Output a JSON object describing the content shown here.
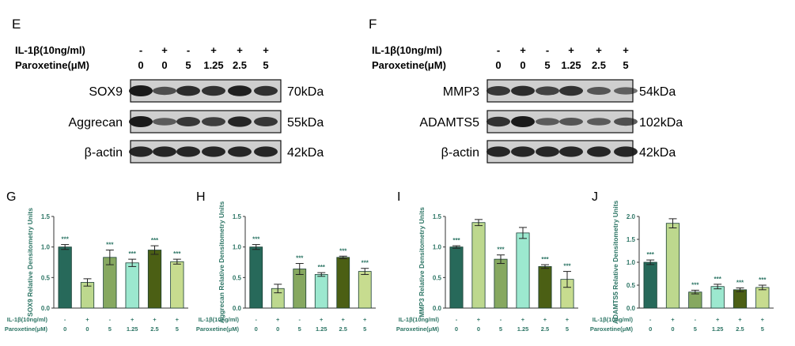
{
  "panels": {
    "blot_left": {
      "letter": "E",
      "il1b_label": "IL-1β(10ng/ml)",
      "par_label": "Paroxetine(μM)",
      "il1b_signs": [
        "-",
        "+",
        "-",
        "+",
        "+",
        "+"
      ],
      "par_values": [
        "0",
        "0",
        "5",
        "1.25",
        "2.5",
        "5"
      ],
      "rows": [
        {
          "protein": "SOX9",
          "kda": "70kDa",
          "intensity": [
            1.0,
            0.55,
            0.85,
            0.8,
            0.95,
            0.8
          ]
        },
        {
          "protein": "Aggrecan",
          "kda": "55kDa",
          "intensity": [
            1.0,
            0.45,
            0.75,
            0.7,
            0.9,
            0.75
          ]
        },
        {
          "protein": "β-actin",
          "kda": "42kDa",
          "intensity": [
            0.9,
            0.9,
            0.9,
            0.9,
            0.9,
            0.9
          ]
        }
      ]
    },
    "blot_right": {
      "letter": "F",
      "il1b_label": "IL-1β(10ng/ml)",
      "par_label": "Paroxetine(μM)",
      "il1b_signs": [
        "-",
        "+",
        "-",
        "+",
        "+",
        "+"
      ],
      "par_values": [
        "0",
        "0",
        "5",
        "1.25",
        "2.5",
        "5"
      ],
      "rows": [
        {
          "protein": "MMP3",
          "kda": "54kDa",
          "intensity": [
            0.75,
            0.85,
            0.65,
            0.8,
            0.5,
            0.4
          ]
        },
        {
          "protein": "ADAMTS5",
          "kda": "102kDa",
          "intensity": [
            0.8,
            1.0,
            0.45,
            0.5,
            0.45,
            0.55
          ]
        },
        {
          "protein": "β-actin",
          "kda": "42kDa",
          "intensity": [
            0.9,
            0.9,
            0.9,
            0.9,
            0.9,
            0.9
          ]
        }
      ]
    }
  },
  "chart_data": [
    {
      "type": "bar",
      "letter": "G",
      "ylabel": "SOX9 Relative Densitometry Units",
      "ylim": [
        0,
        1.5
      ],
      "yticks": [
        "0.0",
        "0.5",
        "1.0",
        "1.5"
      ],
      "il1b_label": "IL-1β(10ng/ml)",
      "par_label": "Paroxetine(μM)",
      "il1b_signs": [
        "-",
        "+",
        "-",
        "+",
        "+",
        "+"
      ],
      "par_values": [
        "0",
        "0",
        "5",
        "1.25",
        "2.5",
        "5"
      ],
      "values": [
        1.0,
        0.42,
        0.83,
        0.74,
        0.95,
        0.76
      ],
      "errors": [
        0.04,
        0.06,
        0.12,
        0.06,
        0.07,
        0.04
      ],
      "sig": [
        "***",
        "",
        "***",
        "***",
        "***",
        "***"
      ]
    },
    {
      "type": "bar",
      "letter": "H",
      "ylabel": "Aggrecan Relative Densitometry Units",
      "ylim": [
        0,
        1.5
      ],
      "yticks": [
        "0.0",
        "0.5",
        "1.0",
        "1.5"
      ],
      "il1b_label": "IL-1β(10ng/ml)",
      "par_label": "Paroxetine(μM)",
      "il1b_signs": [
        "-",
        "+",
        "-",
        "+",
        "+",
        "+"
      ],
      "par_values": [
        "0",
        "0",
        "5",
        "1.25",
        "2.5",
        "5"
      ],
      "values": [
        1.0,
        0.32,
        0.64,
        0.55,
        0.83,
        0.6
      ],
      "errors": [
        0.04,
        0.07,
        0.09,
        0.03,
        0.02,
        0.05
      ],
      "sig": [
        "***",
        "",
        "***",
        "***",
        "***",
        "***"
      ]
    },
    {
      "type": "bar",
      "letter": "I",
      "ylabel": "MMP3 Relative Densitometry Units",
      "ylim": [
        0,
        1.5
      ],
      "yticks": [
        "0.0",
        "0.5",
        "1.0",
        "1.5"
      ],
      "il1b_label": "IL-1β(10ng/ml)",
      "par_label": "Paroxetine(μM)",
      "il1b_signs": [
        "-",
        "+",
        "-",
        "+",
        "+",
        "+"
      ],
      "par_values": [
        "0",
        "0",
        "5",
        "1.25",
        "2.5",
        "5"
      ],
      "values": [
        1.0,
        1.4,
        0.8,
        1.23,
        0.68,
        0.47
      ],
      "errors": [
        0.02,
        0.05,
        0.07,
        0.09,
        0.03,
        0.13
      ],
      "sig": [
        "***",
        "",
        "***",
        "",
        "***",
        "***"
      ]
    },
    {
      "type": "bar",
      "letter": "J",
      "ylabel": "ADAMTS5 Relative Densitometry Units",
      "ylim": [
        0,
        2.0
      ],
      "yticks": [
        "0.0",
        "0.5",
        "1.0",
        "1.5",
        "2.0"
      ],
      "il1b_label": "IL-1β(10ng/ml)",
      "par_label": "Paroxetine(μM)",
      "il1b_signs": [
        "-",
        "+",
        "-",
        "+",
        "+",
        "+"
      ],
      "par_values": [
        "0",
        "0",
        "5",
        "1.25",
        "2.5",
        "5"
      ],
      "values": [
        1.0,
        1.85,
        0.35,
        0.47,
        0.4,
        0.45
      ],
      "errors": [
        0.05,
        0.1,
        0.04,
        0.05,
        0.04,
        0.05
      ],
      "sig": [
        "***",
        "",
        "***",
        "***",
        "***",
        "***"
      ]
    }
  ],
  "colors": {
    "bars": [
      "#27695a",
      "#bdd88e",
      "#86a860",
      "#9ce8cf",
      "#4b5f14",
      "#c7dc8f"
    ],
    "bar_edge": "#1b3f35",
    "text_teal": "#2d7565",
    "blot_bg": "#cfcfcf",
    "band": "#1a1a1a"
  }
}
